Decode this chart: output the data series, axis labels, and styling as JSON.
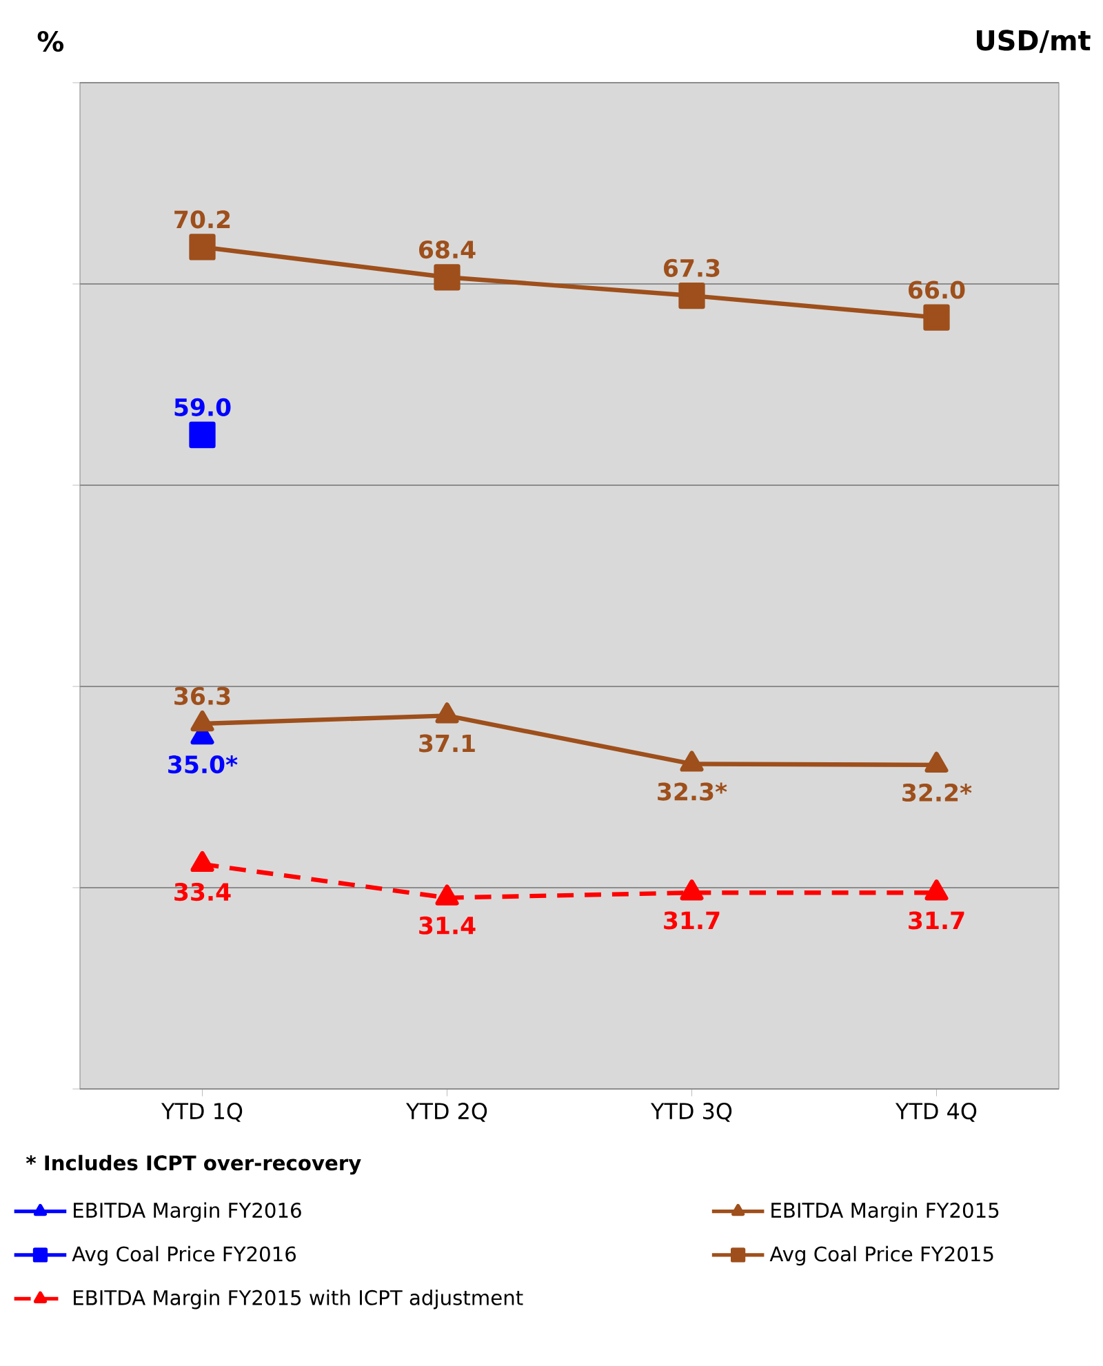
{
  "chart_data": {
    "type": "line",
    "categories": [
      "YTD 1Q",
      "YTD 2Q",
      "YTD 3Q",
      "YTD 4Q"
    ],
    "ylabel": "%",
    "y2label": "USD/mt",
    "ylim": [
      0,
      100
    ],
    "yticks": [
      {
        "value": 0,
        "label": null
      },
      {
        "value": 20,
        "label": null
      },
      {
        "value": 40,
        "label": null
      },
      {
        "value": 60,
        "label": null
      },
      {
        "value": 80,
        "label": null
      },
      {
        "value": 100,
        "label": null
      }
    ],
    "y2lim": [
      20,
      80
    ],
    "grid": "y",
    "tick_labels": "x",
    "legend": "bottom",
    "annotations": [
      "* Includes ICPT over-recovery"
    ],
    "series": [
      {
        "name": "EBITDA Margin FY2016",
        "color": "#0000ff",
        "marker": "triangle",
        "axis": "y",
        "values": [
          35.0,
          null,
          null,
          null
        ],
        "value_labels": [
          "35.0*",
          null,
          null,
          null
        ]
      },
      {
        "name": "EBITDA Margin FY2015",
        "color": "#9e4f1b",
        "marker": "triangle",
        "axis": "y",
        "values": [
          36.3,
          37.1,
          32.3,
          32.2
        ],
        "value_labels": [
          "36.3",
          "37.1",
          "32.3*",
          "32.2*"
        ]
      },
      {
        "name": "Avg Coal Price FY2016",
        "color": "#0000ff",
        "marker": "square",
        "axis": "y2",
        "values": [
          59.0,
          null,
          null,
          null
        ],
        "value_labels": [
          "59.0",
          null,
          null,
          null
        ]
      },
      {
        "name": "Avg Coal Price FY2015",
        "color": "#9e4f1b",
        "marker": "square",
        "axis": "y2",
        "values": [
          70.2,
          68.4,
          67.3,
          66.0
        ],
        "value_labels": [
          "70.2",
          "68.4",
          "67.3",
          "66.0"
        ]
      },
      {
        "name": "EBITDA Margin FY2015 with ICPT adjustment",
        "color": "#ff0000",
        "marker": "triangle",
        "line_style": "dashed",
        "axis": "y2",
        "values": [
          33.4,
          31.4,
          31.7,
          31.7
        ],
        "value_labels": [
          "33.4",
          "31.4",
          "31.7",
          "31.7"
        ]
      }
    ]
  }
}
